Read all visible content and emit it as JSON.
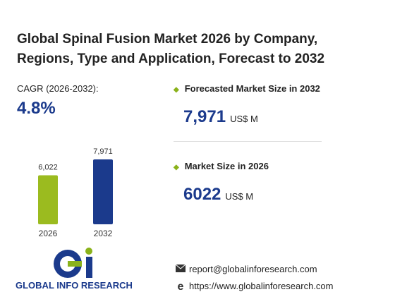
{
  "title": "Global Spinal Fusion Market 2026 by Company, Regions, Type and Application, Forecast to 2032",
  "cagr": {
    "label": "CAGR",
    "period": "(2026-2032):",
    "value": "4.8%"
  },
  "forecast": {
    "label": "Forecasted Market Size in 2032",
    "value": "7,971",
    "unit": "US$ M"
  },
  "current": {
    "label": "Market Size in 2026",
    "value": "6022",
    "unit": "US$ M"
  },
  "chart_data": {
    "type": "bar",
    "categories": [
      "2026",
      "2032"
    ],
    "values": [
      6022,
      7971
    ],
    "value_labels": [
      "6,022",
      "7,971"
    ],
    "colors": [
      "#9bbb1f",
      "#1b3a8c"
    ]
  },
  "logo": {
    "text": "GLOBAL INFO RESEARCH"
  },
  "contact": {
    "email": "report@globalinforesearch.com",
    "website": "https://www.globalinforesearch.com"
  }
}
